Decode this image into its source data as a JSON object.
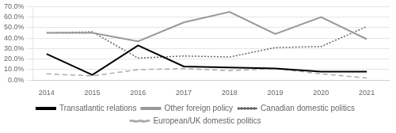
{
  "chart_data": {
    "type": "line",
    "x": [
      2014,
      2015,
      2016,
      2017,
      2018,
      2019,
      2020,
      2021
    ],
    "series": [
      {
        "name": "Transatlantic relations",
        "color": "#000000",
        "line_style": "solid",
        "values": [
          25,
          5,
          33,
          13,
          12,
          11,
          8,
          8
        ]
      },
      {
        "name": "Other foreign policy",
        "color": "#999999",
        "line_style": "solid",
        "values": [
          45,
          45,
          37,
          55,
          65,
          44,
          60,
          39
        ]
      },
      {
        "name": "Canadian domestic politics",
        "color": "#666666",
        "line_style": "dotted",
        "values": [
          45,
          46,
          21,
          23,
          22,
          31,
          32,
          51
        ]
      },
      {
        "name": "European/UK domestic politics",
        "color": "#aaaaaa",
        "line_style": "dashed",
        "values": [
          6,
          4,
          10,
          11,
          9,
          11,
          6,
          2
        ]
      }
    ],
    "xlim": [
      2013.7,
      2021.5
    ],
    "xticks": [
      2014,
      2015,
      2016,
      2017,
      2018,
      2019,
      2020,
      2021
    ],
    "ylim": [
      0,
      70
    ],
    "yticks": [
      {
        "value": 0,
        "label": "0.0%"
      },
      {
        "value": 10,
        "label": "10.0%"
      },
      {
        "value": 20,
        "label": "20.0%"
      },
      {
        "value": 30,
        "label": "30.0%"
      },
      {
        "value": 40,
        "label": "40.0%"
      },
      {
        "value": 50,
        "label": "50.0%"
      },
      {
        "value": 60,
        "label": "60.0%"
      },
      {
        "value": 70,
        "label": "70.0%"
      }
    ],
    "grid": "y",
    "legend": "bottom"
  }
}
